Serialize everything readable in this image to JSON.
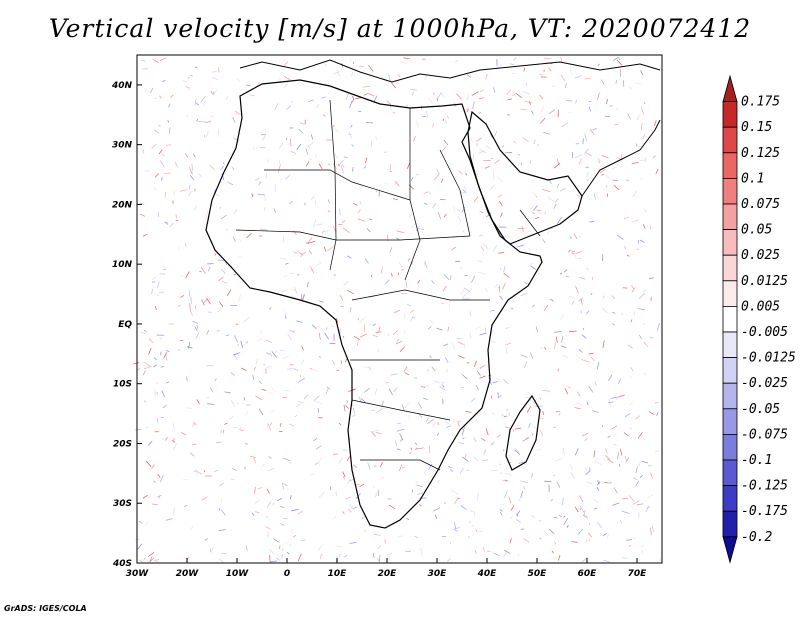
{
  "title": "Vertical velocity [m/s] at 1000hPa, VT: 2020072412",
  "credit": "GrADS: IGES/COLA",
  "map": {
    "lon_labels": [
      "30W",
      "20W",
      "10W",
      "0",
      "10E",
      "20E",
      "30E",
      "40E",
      "50E",
      "60E",
      "70E"
    ],
    "lat_labels": [
      "40N",
      "30N",
      "20N",
      "10N",
      "EQ",
      "10S",
      "20S",
      "30S",
      "40S"
    ],
    "lon_range": [
      -30,
      75
    ],
    "lat_range": [
      -40,
      45
    ]
  },
  "colorbar": {
    "levels": [
      "0.175",
      "0.15",
      "0.125",
      "0.1",
      "0.075",
      "0.05",
      "0.025",
      "0.0125",
      "0.005",
      "-0.005",
      "-0.0125",
      "-0.025",
      "-0.05",
      "-0.075",
      "-0.1",
      "-0.125",
      "-0.175",
      "-0.2"
    ],
    "colors": [
      "#a81f1f",
      "#c42828",
      "#e04848",
      "#ec6666",
      "#f08080",
      "#f4a0a0",
      "#f8bcbc",
      "#fbd6d6",
      "#fdeaea",
      "#ffffff",
      "#e8e8fa",
      "#d2d2f4",
      "#b4b4ee",
      "#9898e6",
      "#7c7cde",
      "#5a5ad2",
      "#3c3cc4",
      "#2020aa",
      "#0c0c8c"
    ]
  }
}
